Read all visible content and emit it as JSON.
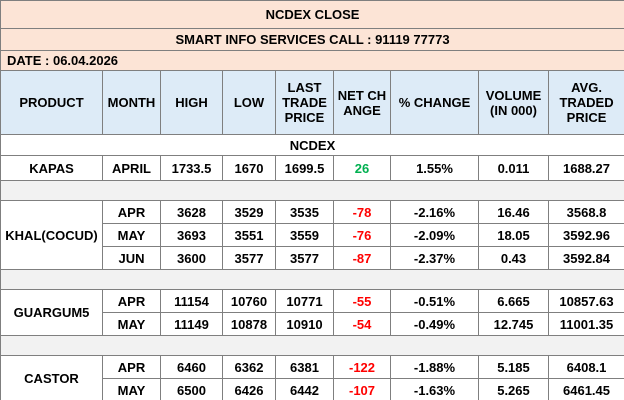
{
  "header": {
    "title": "NCDEX CLOSE",
    "subtitle": "SMART INFO SERVICES CALL : 91119 77773",
    "date": "DATE :  06.04.2026"
  },
  "table": {
    "columns": [
      "PRODUCT",
      "MONTH",
      "HIGH",
      "LOW",
      "LAST TRADE PRICE",
      "NET CHANGE",
      "% CHANGE",
      "VOLUME (IN 000)",
      "AVG. TRADED PRICE"
    ],
    "section": "NCDEX",
    "groups": [
      {
        "product": "KAPAS",
        "rows": [
          [
            "APRIL",
            "1733.5",
            "1670",
            "1699.5",
            "26",
            "1.55%",
            "0.011",
            "1688.27"
          ]
        ]
      },
      {
        "product": "KHAL(COCUD)",
        "rows": [
          [
            "APR",
            "3628",
            "3529",
            "3535",
            "-78",
            "-2.16%",
            "16.46",
            "3568.8"
          ],
          [
            "MAY",
            "3693",
            "3551",
            "3559",
            "-76",
            "-2.09%",
            "18.05",
            "3592.96"
          ],
          [
            "JUN",
            "3600",
            "3577",
            "3577",
            "-87",
            "-2.37%",
            "0.43",
            "3592.84"
          ]
        ]
      },
      {
        "product": "GUARGUM5",
        "rows": [
          [
            "APR",
            "11154",
            "10760",
            "10771",
            "-55",
            "-0.51%",
            "6.665",
            "10857.63"
          ],
          [
            "MAY",
            "11149",
            "10878",
            "10910",
            "-54",
            "-0.49%",
            "12.745",
            "11001.35"
          ]
        ]
      },
      {
        "product": "CASTOR",
        "rows": [
          [
            "APR",
            "6460",
            "6362",
            "6381",
            "-122",
            "-1.88%",
            "5.185",
            "6408.1"
          ],
          [
            "MAY",
            "6500",
            "6426",
            "6442",
            "-107",
            "-1.63%",
            "5.265",
            "6461.45"
          ]
        ]
      }
    ]
  }
}
